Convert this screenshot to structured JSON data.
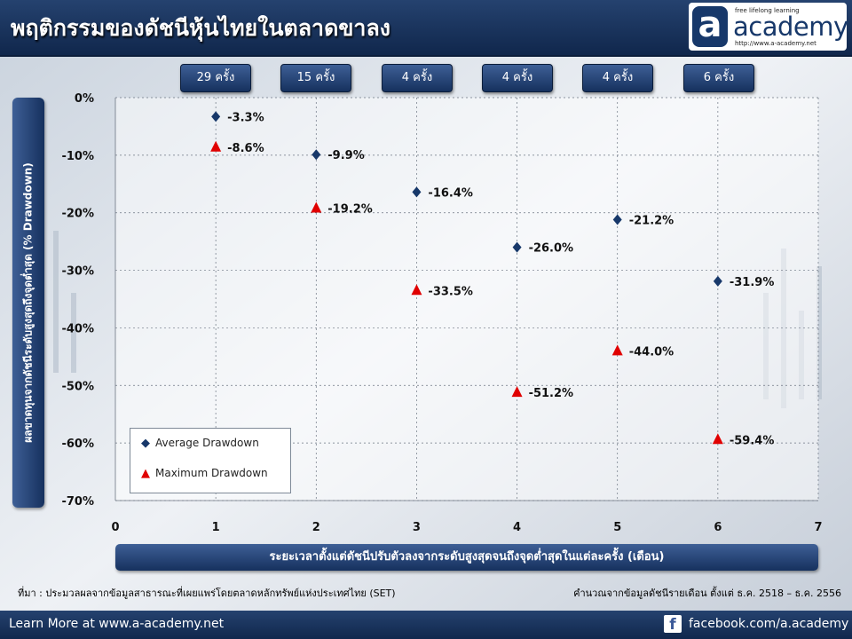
{
  "header": {
    "title": "พฤติกรรมของดัชนีหุ้นไทยในตลาดขาลง",
    "logo": {
      "letter": "a",
      "tagline": "free lifelong learning",
      "word": "academy",
      "url": "http://www.a-academy.net"
    }
  },
  "counts": [
    "29 ครั้ง",
    "15 ครั้ง",
    "4 ครั้ง",
    "4 ครั้ง",
    "4 ครั้ง",
    "6 ครั้ง"
  ],
  "colors": {
    "average": "#17386a",
    "maximum": "#e00000",
    "navy": "#16315e"
  },
  "chart_data": {
    "type": "scatter",
    "title": "",
    "xlabel": "ระยะเวลาตั้งแต่ดัชนีปรับตัวลงจากระดับสูงสุดจนถึงจุดต่ำสุดในแต่ละครั้ง (เดือน)",
    "ylabel": "ผลขาดทุนจากดัชนีระดับสูงสุดถึงจุดต่ำสุด (% Drawdown)",
    "xlim": [
      0,
      7
    ],
    "ylim": [
      -70,
      0
    ],
    "x_ticks": [
      "0",
      "1",
      "2",
      "3",
      "4",
      "5",
      "6",
      "7"
    ],
    "y_ticks": [
      "0%",
      "-10%",
      "-20%",
      "-30%",
      "-40%",
      "-50%",
      "-60%",
      "-70%"
    ],
    "grid": "both dashed",
    "legend": "bottom-left",
    "series": [
      {
        "name": "Average Drawdown",
        "marker": "diamond",
        "points": [
          {
            "x": 1,
            "y": -3.3,
            "label": "-3.3%"
          },
          {
            "x": 2,
            "y": -9.9,
            "label": "-9.9%"
          },
          {
            "x": 3,
            "y": -16.4,
            "label": "-16.4%"
          },
          {
            "x": 4,
            "y": -26.0,
            "label": "-26.0%"
          },
          {
            "x": 5,
            "y": -21.2,
            "label": "-21.2%"
          },
          {
            "x": 6,
            "y": -31.9,
            "label": "-31.9%"
          }
        ]
      },
      {
        "name": "Maximum Drawdown",
        "marker": "triangle",
        "points": [
          {
            "x": 1,
            "y": -8.6,
            "label": "-8.6%"
          },
          {
            "x": 2,
            "y": -19.2,
            "label": "-19.2%"
          },
          {
            "x": 3,
            "y": -33.5,
            "label": "-33.5%"
          },
          {
            "x": 4,
            "y": -51.2,
            "label": "-51.2%"
          },
          {
            "x": 5,
            "y": -44.0,
            "label": "-44.0%"
          },
          {
            "x": 6,
            "y": -59.4,
            "label": "-59.4%"
          }
        ]
      }
    ]
  },
  "source": {
    "left": "ที่มา : ประมวลผลจากข้อมูลสาธารณะที่เผยแพร่โดยตลาดหลักทรัพย์แห่งประเทศไทย (SET)",
    "right": "คำนวณจากข้อมูลดัชนีรายเดือน ตั้งแต่ ธ.ค. 2518 – ธ.ค. 2556"
  },
  "footer": {
    "left": "Learn More at www.a-academy.net",
    "right": "facebook.com/a.academy",
    "fb_letter": "f"
  }
}
